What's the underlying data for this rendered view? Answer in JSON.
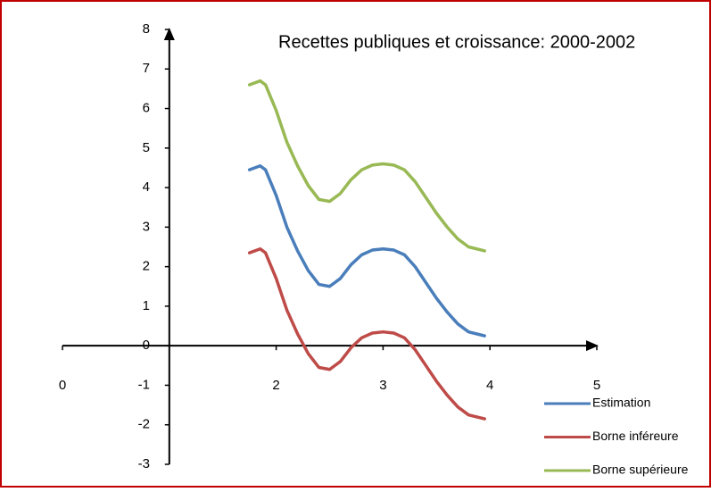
{
  "chart_data": {
    "type": "line",
    "title": "Recettes publiques et croissance: 2000-2002",
    "x": [
      1.75,
      1.85,
      1.9,
      2.0,
      2.1,
      2.2,
      2.3,
      2.4,
      2.5,
      2.6,
      2.7,
      2.8,
      2.9,
      3.0,
      3.1,
      3.2,
      3.3,
      3.4,
      3.5,
      3.6,
      3.7,
      3.8,
      3.95
    ],
    "series": [
      {
        "name": "Estimation",
        "color": "#4a7ebb",
        "values": [
          4.45,
          4.55,
          4.45,
          3.8,
          3.0,
          2.4,
          1.9,
          1.55,
          1.5,
          1.7,
          2.05,
          2.3,
          2.42,
          2.45,
          2.42,
          2.3,
          2.0,
          1.6,
          1.2,
          0.85,
          0.55,
          0.35,
          0.25
        ]
      },
      {
        "name": "Borne inféreure",
        "color": "#be4b48",
        "values": [
          2.35,
          2.45,
          2.35,
          1.7,
          0.9,
          0.3,
          -0.2,
          -0.55,
          -0.6,
          -0.4,
          -0.05,
          0.2,
          0.32,
          0.35,
          0.32,
          0.2,
          -0.1,
          -0.5,
          -0.9,
          -1.25,
          -1.55,
          -1.75,
          -1.85
        ]
      },
      {
        "name": "Borne supérieure",
        "color": "#98b954",
        "values": [
          6.6,
          6.7,
          6.6,
          5.95,
          5.15,
          4.55,
          4.05,
          3.7,
          3.65,
          3.85,
          4.2,
          4.45,
          4.57,
          4.6,
          4.57,
          4.45,
          4.15,
          3.75,
          3.35,
          3.0,
          2.7,
          2.5,
          2.4
        ]
      }
    ],
    "xlim": [
      0,
      5
    ],
    "xticks": [
      0,
      2,
      3,
      4,
      5
    ],
    "ylim": [
      -3,
      8
    ],
    "yticks": [
      -3,
      -2,
      -1,
      0,
      1,
      2,
      3,
      4,
      5,
      6,
      7,
      8
    ],
    "legend": "bottom-right"
  }
}
